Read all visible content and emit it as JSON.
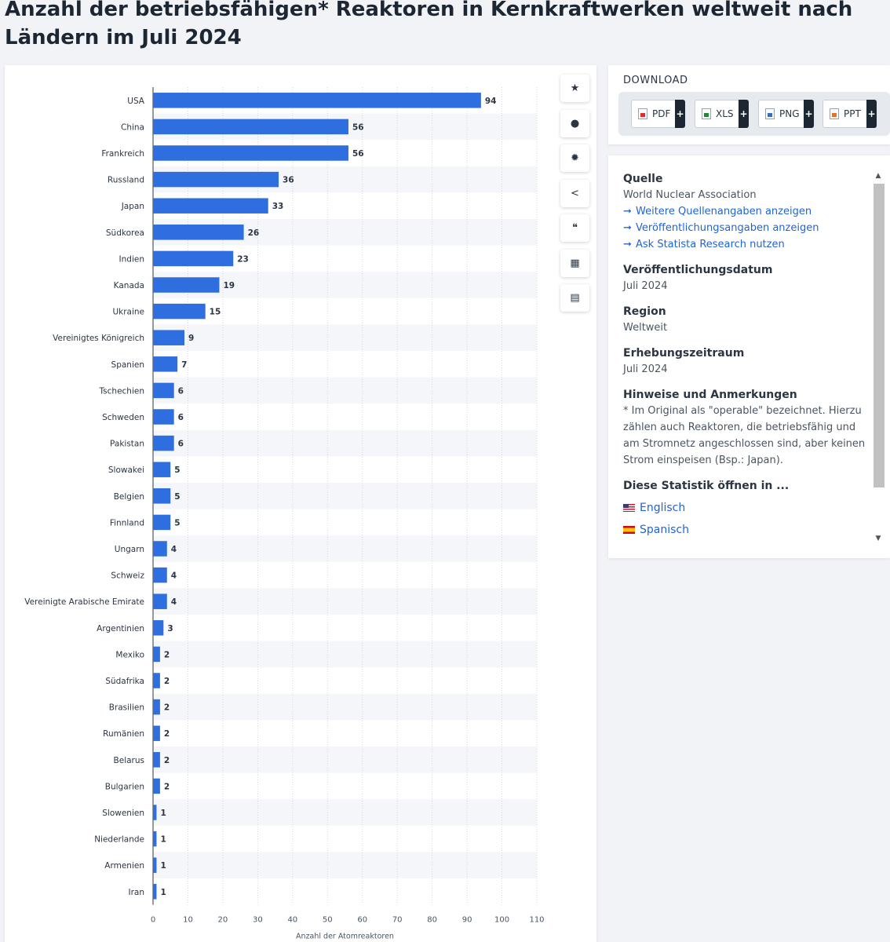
{
  "title": "Anzahl der betriebsfähigen* Reaktoren in Kernkraftwerken weltweit nach Ländern im Juli 2024",
  "toolbar": {
    "icons": [
      "star-icon",
      "bell-icon",
      "gear-icon",
      "share-icon",
      "quote-icon",
      "flag-us-icon",
      "print-icon"
    ],
    "glyphs": [
      "★",
      "●",
      "✹",
      "<",
      "❝",
      "▦",
      "▤"
    ]
  },
  "download": {
    "title": "DOWNLOAD",
    "buttons": [
      "PDF",
      "XLS",
      "PNG",
      "PPT"
    ],
    "plus": "+"
  },
  "info": {
    "source_heading": "Quelle",
    "source": "World Nuclear Association",
    "links": [
      "Weitere Quellenangaben anzeigen",
      "Veröffentlichungsangaben anzeigen",
      "Ask Statista Research nutzen"
    ],
    "link_arrow": "➞",
    "pubdate_heading": "Veröffentlichungsdatum",
    "pubdate": "Juli 2024",
    "region_heading": "Region",
    "region": "Weltweit",
    "period_heading": "Erhebungszeitraum",
    "period": "Juli 2024",
    "notes_heading": "Hinweise und Anmerkungen",
    "notes": "* Im Original als \"operable\" bezeichnet. Hierzu zählen auch Reaktoren, die betriebsfähig und am Stromnetz angeschlossen sind, aber keinen Strom einspeisen (Bsp.: Japan).",
    "open_heading": "Diese Statistik öffnen in ...",
    "languages": [
      "Englisch",
      "Spanisch"
    ]
  },
  "chart_data": {
    "type": "bar",
    "orientation": "horizontal",
    "categories": [
      "USA",
      "China",
      "Frankreich",
      "Russland",
      "Japan",
      "Südkorea",
      "Indien",
      "Kanada",
      "Ukraine",
      "Vereinigtes Königreich",
      "Spanien",
      "Tschechien",
      "Schweden",
      "Pakistan",
      "Slowakei",
      "Belgien",
      "Finnland",
      "Ungarn",
      "Schweiz",
      "Vereinigte Arabische Emirate",
      "Argentinien",
      "Mexiko",
      "Südafrika",
      "Brasilien",
      "Rumänien",
      "Belarus",
      "Bulgarien",
      "Slowenien",
      "Niederlande",
      "Armenien",
      "Iran"
    ],
    "values": [
      94,
      56,
      56,
      36,
      33,
      26,
      23,
      19,
      15,
      9,
      7,
      6,
      6,
      6,
      5,
      5,
      5,
      4,
      4,
      4,
      3,
      2,
      2,
      2,
      2,
      2,
      2,
      1,
      1,
      1,
      1
    ],
    "xlabel": "Anzahl der Atomreaktoren",
    "xlim": [
      0,
      110
    ],
    "xticks": [
      0,
      10,
      20,
      30,
      40,
      50,
      60,
      70,
      80,
      90,
      100,
      110
    ],
    "grid": true,
    "bar_color": "#2f6ede",
    "alt_row_color": "#f4f6fa"
  }
}
